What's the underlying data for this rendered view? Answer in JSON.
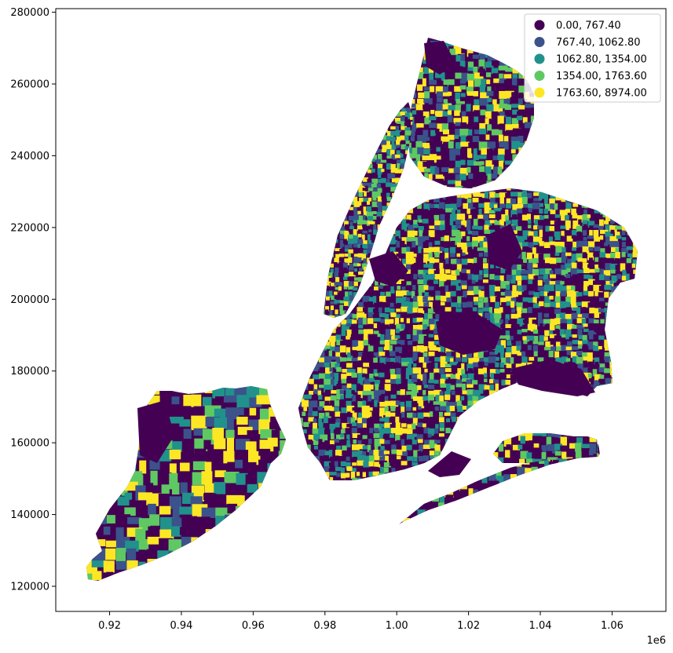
{
  "chart_data": {
    "type": "choropleth",
    "title": "",
    "xlabel": "",
    "ylabel": "",
    "x_offset_label": "1e6",
    "xlim": [
      0.905,
      1.075
    ],
    "ylim": [
      113000,
      281000
    ],
    "x_ticks": [
      0.92,
      0.94,
      0.96,
      0.98,
      1.0,
      1.02,
      1.04,
      1.06
    ],
    "x_tick_labels": [
      "0.92",
      "0.94",
      "0.96",
      "0.98",
      "1.00",
      "1.02",
      "1.04",
      "1.06"
    ],
    "y_ticks": [
      120000,
      140000,
      160000,
      180000,
      200000,
      220000,
      240000,
      260000,
      280000
    ],
    "y_tick_labels": [
      "120000",
      "140000",
      "160000",
      "180000",
      "200000",
      "220000",
      "240000",
      "260000",
      "280000"
    ],
    "grid": false,
    "colormap": "viridis",
    "legend": {
      "placement": "top-right",
      "entries": [
        {
          "label": "   0.00,  767.40",
          "color": "#440154"
        },
        {
          "label": " 767.40, 1062.80",
          "color": "#3b528b"
        },
        {
          "label": "1062.80, 1354.00",
          "color": "#21918c"
        },
        {
          "label": "1354.00, 1763.60",
          "color": "#5ec962"
        },
        {
          "label": "1763.60, 8974.00",
          "color": "#fde725"
        }
      ]
    }
  }
}
